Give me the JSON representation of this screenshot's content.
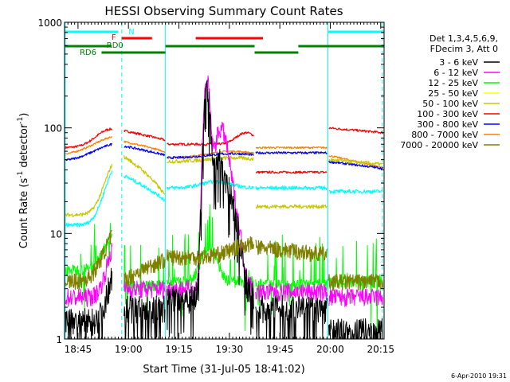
{
  "chart_data": {
    "type": "line",
    "title": "HESSI Observing Summary Count Rates",
    "xlabel": "Start Time (31-Jul-05 18:41:02)",
    "ylabel_main": "Count Rate (s",
    "ylabel_sup1": "-1",
    "ylabel_mid": " detector",
    "ylabel_sup2": "-1",
    "ylabel_end": ")",
    "footer": "6-Apr-2010 19:31",
    "y_scale": "log",
    "ylim": [
      1,
      1000
    ],
    "xlim_minutes_after_1841": [
      0,
      95
    ],
    "x_ticks": [
      {
        "label": "18:45",
        "t": 4
      },
      {
        "label": "19:00",
        "t": 19
      },
      {
        "label": "19:15",
        "t": 34
      },
      {
        "label": "19:30",
        "t": 49
      },
      {
        "label": "19:45",
        "t": 64
      },
      {
        "label": "20:00",
        "t": 79
      },
      {
        "label": "20:15",
        "t": 94
      }
    ],
    "y_ticks": [
      {
        "label": "1",
        "v": 1
      },
      {
        "label": "10",
        "v": 10
      },
      {
        "label": "100",
        "v": 100
      },
      {
        "label": "1000",
        "v": 1000
      }
    ],
    "legend_header": [
      "Det 1,3,4,5,6,9,",
      "FDecim 3, Att 0"
    ],
    "series": [
      {
        "name": "3 - 6 keV",
        "color": "#000000"
      },
      {
        "name": "6 - 12 keV",
        "color": "#ff00ff"
      },
      {
        "name": "12 - 25 keV",
        "color": "#00ff00"
      },
      {
        "name": "25 - 50 keV",
        "color": "#ffff00"
      },
      {
        "name": "50 - 100 keV",
        "color": "#c8c800"
      },
      {
        "name": "100 - 300 keV",
        "color": "#ff0000"
      },
      {
        "name": "300 - 800 keV",
        "color": "#0000ff"
      },
      {
        "name": "800 - 7000 keV",
        "color": "#ff8000"
      },
      {
        "name": "7000 - 20000 keV",
        "color": "#808000"
      }
    ],
    "flag_labels": [
      {
        "text": "N",
        "color": "#00ffff"
      },
      {
        "text": "F",
        "color": "#ff0000"
      },
      {
        "text": "RD0",
        "color": "#008000"
      },
      {
        "text": "RD6",
        "color": "#008000"
      }
    ]
  }
}
